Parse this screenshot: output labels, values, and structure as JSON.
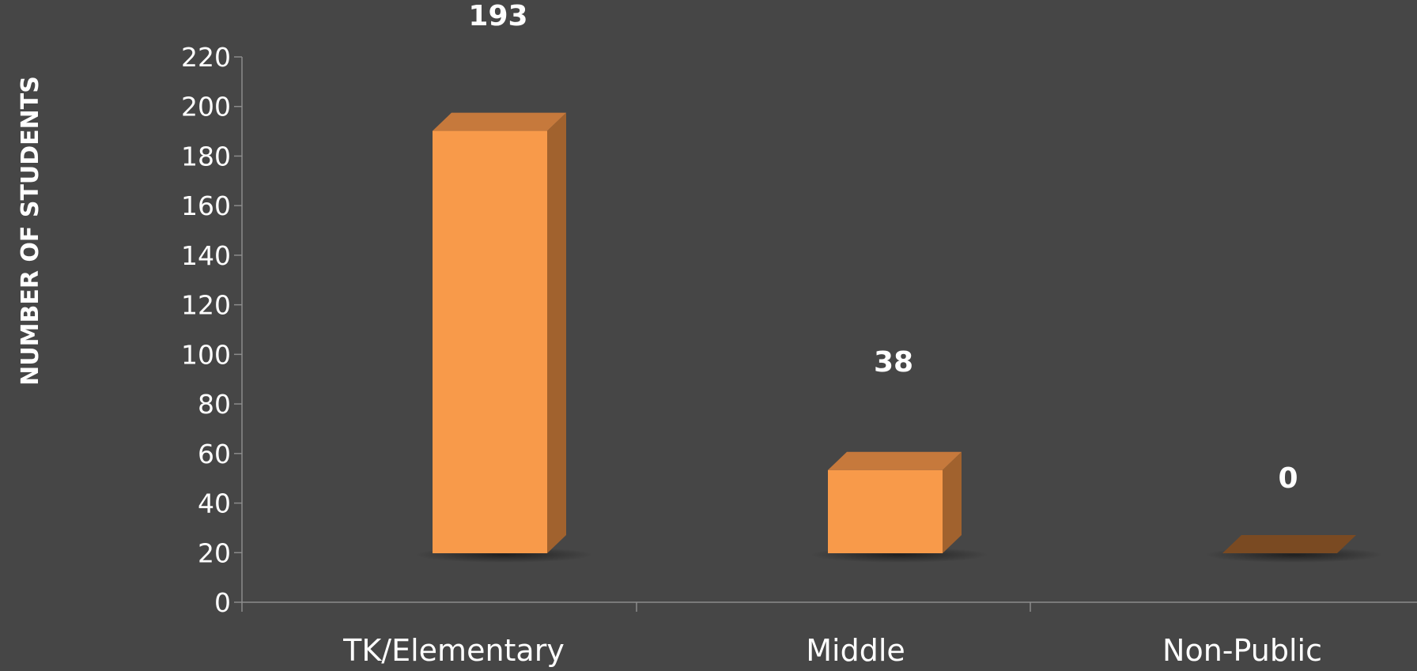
{
  "chart_data": {
    "type": "bar",
    "categories": [
      "TK/Elementary",
      "Middle",
      "Non-Public"
    ],
    "values": [
      193,
      38,
      0
    ],
    "data_labels": [
      "193",
      "38",
      "0"
    ],
    "title": "",
    "xlabel": "",
    "ylabel": "NUMBER OF STUDENTS",
    "ylim": [
      0,
      220
    ],
    "yticks": [
      0,
      20,
      40,
      60,
      80,
      100,
      120,
      140,
      160,
      180,
      200,
      220
    ],
    "grid": false,
    "legend": "none",
    "style": "3d-bars",
    "colors": {
      "background": "#464646",
      "bar_front": "#F89A4A",
      "bar_top": "#C6793C",
      "bar_side": "#A1622E",
      "axis": "#8c8c8c",
      "text": "#ffffff"
    }
  }
}
